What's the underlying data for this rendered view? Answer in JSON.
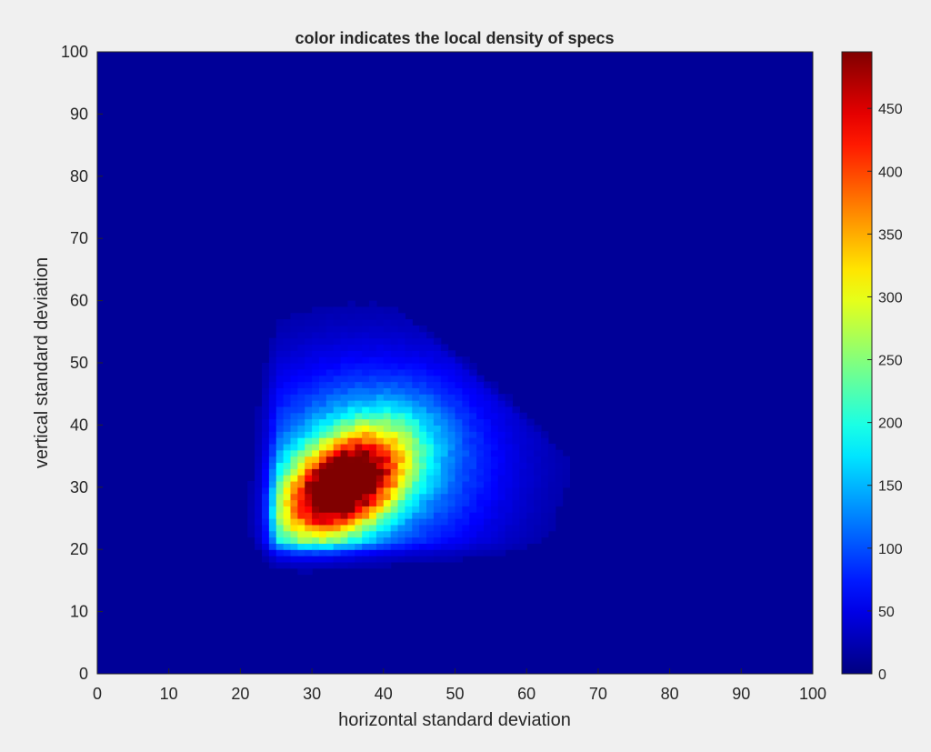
{
  "chart_data": {
    "type": "heatmap",
    "title": "color indicates the local density of specs",
    "xlabel": "horizontal standard deviation",
    "ylabel": "vertical standard deviation",
    "xlim": [
      0,
      100
    ],
    "ylim": [
      0,
      100
    ],
    "xticks": [
      "0",
      "10",
      "20",
      "30",
      "40",
      "50",
      "60",
      "70",
      "80",
      "90",
      "100"
    ],
    "yticks": [
      "0",
      "10",
      "20",
      "30",
      "40",
      "50",
      "60",
      "70",
      "80",
      "90",
      "100"
    ],
    "colormap": "jet",
    "colorbar": {
      "range": [
        0,
        495
      ],
      "ticks": [
        "0",
        "50",
        "100",
        "150",
        "200",
        "250",
        "300",
        "350",
        "400",
        "450"
      ]
    },
    "density_description": {
      "peak_value": 495,
      "peak_location": [
        34,
        30
      ],
      "background_value": 12,
      "upper_boundary": "x + y <= 100 (diagonal edge from about (25,73) to (73,30))"
    },
    "colors": {
      "background": "#f0f0f0",
      "axis": "#262626",
      "colormap_low": "#00008f",
      "colormap_high": "#800000"
    }
  }
}
